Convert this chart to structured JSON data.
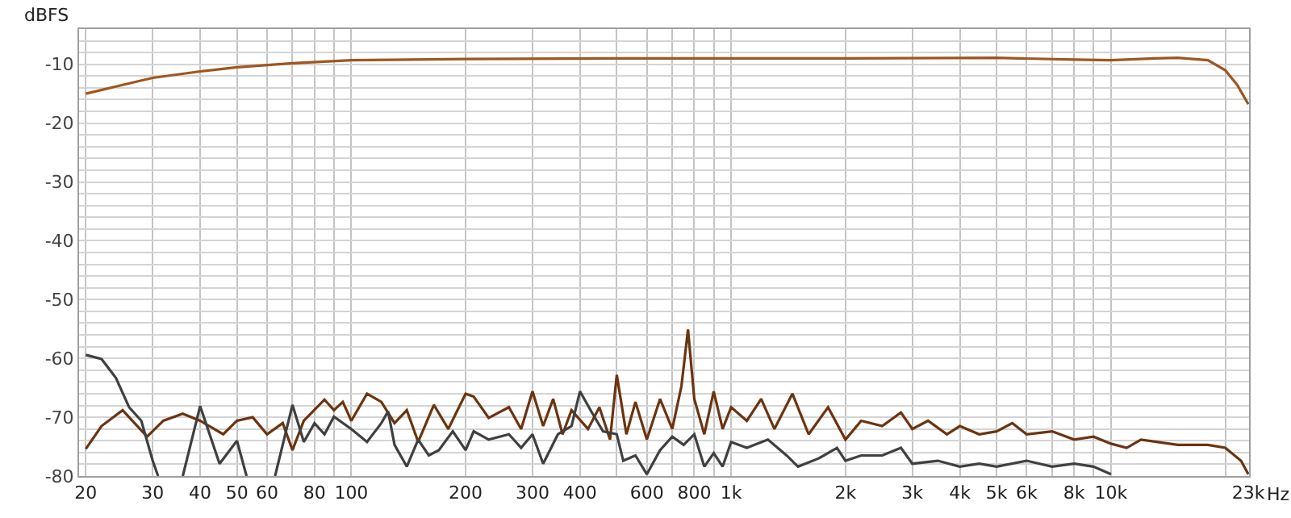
{
  "chart_data": {
    "type": "line",
    "ylabel": "dBFS",
    "log": "x",
    "grid": true,
    "line_style": "solid",
    "marker": "none",
    "xlim": [
      19.2,
      23100
    ],
    "ylim": [
      -80,
      -4
    ],
    "xticks": [
      20,
      30,
      40,
      50,
      60,
      {
        "value": 70,
        "label": null
      },
      80,
      {
        "value": 90,
        "label": null
      },
      100,
      200,
      300,
      400,
      {
        "value": 500,
        "label": null
      },
      600,
      {
        "value": 700,
        "label": null
      },
      800,
      {
        "value": 900,
        "label": null
      },
      {
        "value": 1000,
        "label": "1k"
      },
      {
        "value": 2000,
        "label": "2k"
      },
      {
        "value": 3000,
        "label": "3k"
      },
      {
        "value": 4000,
        "label": "4k"
      },
      {
        "value": 5000,
        "label": "5k"
      },
      {
        "value": 6000,
        "label": "6k"
      },
      {
        "value": 7000,
        "label": null
      },
      {
        "value": 8000,
        "label": "8k"
      },
      {
        "value": 9000,
        "label": null
      },
      {
        "value": 10000,
        "label": "10k"
      },
      {
        "value": 20000,
        "label": null
      },
      {
        "value": 23000,
        "label": "23k"
      }
    ],
    "xlabel": "Hz",
    "yticks": [
      {
        "value": -6,
        "label": null
      },
      {
        "value": -8,
        "label": null
      },
      -10,
      {
        "value": -12,
        "label": null
      },
      {
        "value": -14,
        "label": null
      },
      {
        "value": -16,
        "label": null
      },
      {
        "value": -18,
        "label": null
      },
      -20,
      {
        "value": -22,
        "label": null
      },
      {
        "value": -24,
        "label": null
      },
      {
        "value": -26,
        "label": null
      },
      {
        "value": -28,
        "label": null
      },
      -30,
      {
        "value": -32,
        "label": null
      },
      {
        "value": -34,
        "label": null
      },
      {
        "value": -36,
        "label": null
      },
      {
        "value": -38,
        "label": null
      },
      -40,
      {
        "value": -42,
        "label": null
      },
      {
        "value": -44,
        "label": null
      },
      {
        "value": -46,
        "label": null
      },
      {
        "value": -48,
        "label": null
      },
      -50,
      {
        "value": -52,
        "label": null
      },
      {
        "value": -54,
        "label": null
      },
      {
        "value": -56,
        "label": null
      },
      {
        "value": -58,
        "label": null
      },
      -60,
      {
        "value": -62,
        "label": null
      },
      {
        "value": -64,
        "label": null
      },
      {
        "value": -66,
        "label": null
      },
      {
        "value": -68,
        "label": null
      },
      -70,
      {
        "value": -72,
        "label": null
      },
      {
        "value": -74,
        "label": null
      },
      {
        "value": -76,
        "label": null
      },
      {
        "value": -78,
        "label": null
      },
      -80
    ],
    "series": [
      {
        "color": "#a0561e",
        "x": [
          20,
          25,
          30,
          40,
          50,
          70,
          100,
          200,
          500,
          1000,
          2000,
          5000,
          8000,
          10000,
          13000,
          15000,
          18000,
          20000,
          21500,
          23000
        ],
        "values": [
          -15,
          -13.5,
          -12.3,
          -11.2,
          -10.5,
          -9.8,
          -9.3,
          -9.1,
          -9,
          -9,
          -9,
          -8.9,
          -9.2,
          -9.3,
          -9,
          -8.9,
          -9.3,
          -11,
          -13.5,
          -16.8
        ]
      },
      {
        "color": "#6b3410",
        "x": [
          20,
          22,
          25,
          29,
          32,
          36,
          40,
          43,
          46,
          50,
          55,
          60,
          66,
          70,
          75,
          85,
          90,
          95,
          100,
          110,
          120,
          130,
          140,
          150,
          165,
          180,
          200,
          210,
          230,
          260,
          280,
          300,
          320,
          340,
          360,
          380,
          420,
          450,
          480,
          500,
          530,
          560,
          600,
          650,
          700,
          740,
          770,
          800,
          850,
          900,
          950,
          1000,
          1100,
          1200,
          1300,
          1450,
          1600,
          1800,
          2000,
          2200,
          2500,
          2800,
          3000,
          3300,
          3700,
          4000,
          4500,
          5000,
          5500,
          6000,
          7000,
          8000,
          9000,
          10000,
          11000,
          12000,
          15000,
          18000,
          20000,
          22000,
          23000
        ],
        "values": [
          -75.4,
          -71.5,
          -68.8,
          -73.3,
          -70.6,
          -69.4,
          -70.6,
          -71.8,
          -72.9,
          -70.6,
          -70,
          -72.9,
          -71,
          -75.6,
          -70.6,
          -67,
          -68.8,
          -67.4,
          -70.6,
          -66,
          -67.4,
          -71,
          -68.8,
          -74.2,
          -67.9,
          -72,
          -66,
          -66.5,
          -70.1,
          -68.3,
          -72,
          -65.6,
          -71.5,
          -66.9,
          -72.9,
          -68.8,
          -72,
          -68.3,
          -73.8,
          -62.8,
          -72.9,
          -67.4,
          -73.8,
          -66.9,
          -72,
          -64.7,
          -55.1,
          -66.9,
          -72.9,
          -65.6,
          -72,
          -68.3,
          -70.6,
          -66.9,
          -72,
          -66,
          -72.9,
          -68.3,
          -73.8,
          -70.6,
          -71.5,
          -69.2,
          -72,
          -70.6,
          -72.9,
          -71.5,
          -72.9,
          -72.4,
          -71,
          -72.9,
          -72.4,
          -73.8,
          -73.3,
          -74.5,
          -75.2,
          -73.8,
          -74.7,
          -74.7,
          -75.2,
          -77.4,
          -79.7
        ]
      },
      {
        "color": "#404040",
        "x": [
          20,
          22,
          24,
          26,
          28,
          30,
          31,
          33,
          36,
          40,
          45,
          50,
          53,
          58,
          63,
          70,
          75,
          80,
          85,
          90,
          100,
          110,
          120,
          125,
          130,
          140,
          150,
          160,
          170,
          185,
          200,
          210,
          230,
          260,
          280,
          300,
          320,
          350,
          380,
          400,
          430,
          460,
          500,
          520,
          560,
          600,
          650,
          700,
          750,
          800,
          850,
          900,
          950,
          1000,
          1100,
          1250,
          1400,
          1500,
          1700,
          1900,
          2000,
          2200,
          2500,
          2800,
          3000,
          3500,
          4000,
          4500,
          5000,
          6000,
          7000,
          8000,
          9000,
          10000
        ],
        "values": [
          -59.4,
          -60.1,
          -63.3,
          -68.3,
          -70.6,
          -77.4,
          -80,
          null,
          -80,
          -68.1,
          -77.9,
          -74,
          -80,
          null,
          -80,
          -67.9,
          -74.2,
          -71,
          -72.9,
          -69.9,
          -72,
          -74.2,
          -71,
          -69,
          -74.7,
          -78.4,
          -73.8,
          -76.5,
          -75.6,
          -72.4,
          -75.6,
          -72.4,
          -73.8,
          -72.9,
          -75.2,
          -72.9,
          -77.9,
          -72.9,
          -71.5,
          -65.6,
          -69.2,
          -72.4,
          -72.9,
          -77.4,
          -76.5,
          -79.7,
          -75.6,
          -73.3,
          -74.7,
          -72.9,
          -78.4,
          -76.1,
          -78.4,
          -74.2,
          -75.2,
          -73.8,
          -76.5,
          -78.4,
          -77,
          -75.2,
          -77.4,
          -76.5,
          -76.5,
          -75.2,
          -77.9,
          -77.4,
          -78.4,
          -77.9,
          -78.4,
          -77.4,
          -78.4,
          -77.9,
          -78.4,
          -79.7
        ]
      }
    ]
  }
}
